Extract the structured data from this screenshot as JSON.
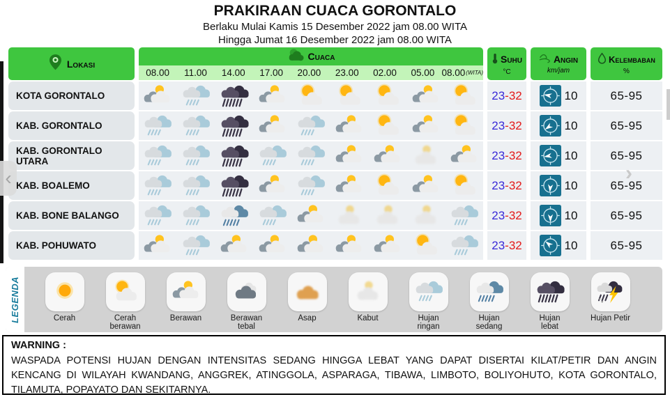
{
  "page": {
    "title": "PRAKIRAAN CUACA GORONTALO",
    "subtitle_line1": "Berlaku Mulai Kamis 15 Desember 2022 jam 08.00 WITA",
    "subtitle_line2": "Hingga Jumat 16 Desember 2022 jam 08.00 WITA"
  },
  "columns": {
    "lokasi_label": "Lokasi",
    "cuaca_label": "Cuaca",
    "suhu_label": "Suhu",
    "suhu_unit": "°C",
    "angin_label": "Angin",
    "angin_unit": "km/jam",
    "kelembaban_label": "Kelembaban",
    "kelembaban_unit": "%",
    "times": [
      "08.00",
      "11.00",
      "14.00",
      "17.00",
      "20.00",
      "23.00",
      "02.00",
      "05.00",
      "08.00"
    ],
    "times_zone_suffix": "(WITA)"
  },
  "rows": [
    {
      "name": "KOTA GORONTALO",
      "weather": [
        "berawan",
        "hujan-ringan",
        "hujan-lebat",
        "berawan",
        "cerah-berawan",
        "cerah-berawan",
        "cerah-berawan",
        "berawan",
        "cerah-berawan"
      ],
      "temp_min": "23",
      "temp_max": "32",
      "wind_speed": "10",
      "wind_dir_deg": 280,
      "humidity": "65-95"
    },
    {
      "name": "KAB. GORONTALO",
      "weather": [
        "hujan-ringan",
        "hujan-ringan",
        "hujan-lebat",
        "berawan",
        "hujan-ringan",
        "berawan",
        "cerah-berawan",
        "berawan",
        "cerah-berawan"
      ],
      "temp_min": "23",
      "temp_max": "32",
      "wind_speed": "10",
      "wind_dir_deg": 235,
      "humidity": "65-95"
    },
    {
      "name": "KAB. GORONTALO UTARA",
      "weather": [
        "hujan-ringan",
        "hujan-ringan",
        "hujan-lebat",
        "hujan-ringan",
        "hujan-ringan",
        "berawan",
        "berawan",
        "kabut",
        "berawan"
      ],
      "temp_min": "23",
      "temp_max": "32",
      "wind_speed": "10",
      "wind_dir_deg": 260,
      "humidity": "65-95"
    },
    {
      "name": "KAB. BOALEMO",
      "weather": [
        "hujan-ringan",
        "hujan-ringan",
        "hujan-lebat",
        "berawan",
        "hujan-ringan",
        "berawan",
        "cerah-berawan",
        "berawan",
        "cerah-berawan"
      ],
      "temp_min": "23",
      "temp_max": "32",
      "wind_speed": "10",
      "wind_dir_deg": 185,
      "humidity": "65-95"
    },
    {
      "name": "KAB. BONE BALANGO",
      "weather": [
        "hujan-ringan",
        "hujan-ringan",
        "hujan-sedang",
        "hujan-ringan",
        "berawan",
        "kabut",
        "kabut",
        "kabut",
        "hujan-ringan"
      ],
      "temp_min": "23",
      "temp_max": "32",
      "wind_speed": "10",
      "wind_dir_deg": 180,
      "humidity": "65-95"
    },
    {
      "name": "KAB. POHUWATO",
      "weather": [
        "berawan",
        "hujan-ringan",
        "berawan",
        "berawan",
        "berawan",
        "berawan",
        "berawan",
        "cerah-berawan",
        "hujan-ringan"
      ],
      "temp_min": "23",
      "temp_max": "32",
      "wind_speed": "10",
      "wind_dir_deg": 310,
      "humidity": "65-95"
    }
  ],
  "legend": {
    "tab_label": "LEGENDA",
    "items": [
      {
        "type": "cerah",
        "label": "Cerah"
      },
      {
        "type": "cerah-berawan",
        "label": "Cerah berawan"
      },
      {
        "type": "berawan",
        "label": "Berawan"
      },
      {
        "type": "berawan-tebal",
        "label": "Berawan tebal"
      },
      {
        "type": "asap",
        "label": "Asap"
      },
      {
        "type": "kabut",
        "label": "Kabut"
      },
      {
        "type": "hujan-ringan",
        "label": "Hujan ringan"
      },
      {
        "type": "hujan-sedang",
        "label": "Hujan sedang"
      },
      {
        "type": "hujan-lebat",
        "label": "Hujan lebat"
      },
      {
        "type": "hujan-petir",
        "label": "Hujan Petir"
      }
    ]
  },
  "warning": {
    "heading": "WARNING :",
    "body": "WASPADA POTENSI HUJAN DENGAN INTENSITAS SEDANG HINGGA LEBAT YANG DAPAT DISERTAI KILAT/PETIR DAN ANGIN KENCANG DI WILAYAH KWANDANG, ANGGREK, ATINGGOLA, ASPARAGA, TIBAWA, LIMBOTO, BOLIYOHUTO, KOTA GORONTALO, TILAMUTA, POPAYATO DAN SEKITARNYA."
  },
  "nav": {
    "prev_icon": "‹",
    "next_icon": "›"
  },
  "colors": {
    "header_green": "#3FC63F",
    "time_strip_green": "#C3F4B9",
    "row_bg": "#EDF0F3",
    "location_pill": "#E3E7EA",
    "wind_tile_teal": "#17708F",
    "temp_min_blue": "#3929D8",
    "temp_max_red": "#E31B1B",
    "legend_bg": "#D2D2D2",
    "legend_tab_text": "#187C9C"
  }
}
